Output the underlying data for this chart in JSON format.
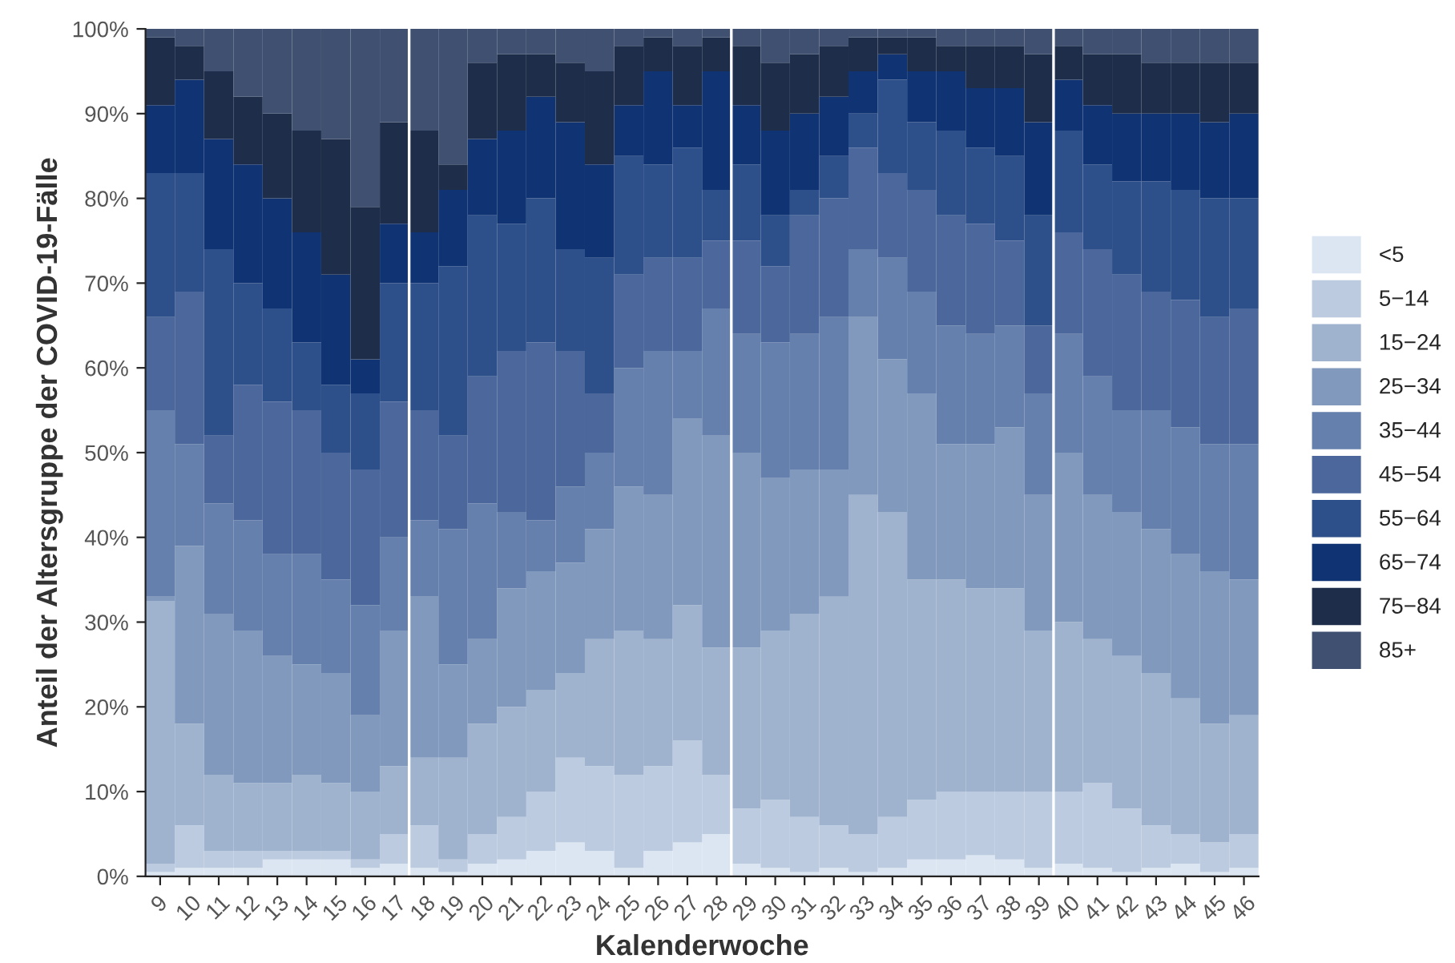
{
  "chart_data": {
    "type": "bar",
    "stacked": true,
    "xlabel": "Kalenderwoche",
    "ylabel": "Anteil der Altersgruppe der COVID-19-Fälle",
    "x": [
      9,
      10,
      11,
      12,
      13,
      14,
      15,
      16,
      17,
      18,
      19,
      20,
      21,
      22,
      23,
      24,
      25,
      26,
      27,
      28,
      29,
      30,
      31,
      32,
      33,
      34,
      35,
      36,
      37,
      38,
      39,
      40,
      41,
      42,
      43,
      44,
      45,
      46
    ],
    "xlim": [
      8.5,
      46.5
    ],
    "xticks": [
      9,
      10,
      11,
      12,
      13,
      14,
      15,
      16,
      17,
      18,
      19,
      20,
      21,
      22,
      23,
      24,
      25,
      26,
      27,
      28,
      29,
      30,
      31,
      32,
      33,
      34,
      35,
      36,
      37,
      38,
      39,
      40,
      41,
      42,
      43,
      44,
      45,
      46
    ],
    "ylim": [
      0,
      100
    ],
    "yticks": [
      {
        "value": 0,
        "label": "0%"
      },
      {
        "value": 10,
        "label": "10%"
      },
      {
        "value": 20,
        "label": "20%"
      },
      {
        "value": 30,
        "label": "30%"
      },
      {
        "value": 40,
        "label": "40%"
      },
      {
        "value": 50,
        "label": "50%"
      },
      {
        "value": 60,
        "label": "60%"
      },
      {
        "value": 70,
        "label": "70%"
      },
      {
        "value": 80,
        "label": "80%"
      },
      {
        "value": 90,
        "label": "90%"
      },
      {
        "value": 100,
        "label": "100%"
      }
    ],
    "series": [
      {
        "name": "<5",
        "color": "#dce6f2",
        "values": [
          0.5,
          1,
          1,
          1,
          2,
          2,
          2,
          1,
          1.5,
          1,
          0.5,
          1.5,
          2,
          3,
          4,
          3,
          1,
          3,
          4,
          5,
          1.5,
          1,
          0.5,
          1,
          0.5,
          1,
          2,
          2,
          2.5,
          2,
          1,
          1.5,
          1,
          0.5,
          1,
          1.5,
          0.5,
          1
        ]
      },
      {
        "name": "5−14",
        "color": "#bccbe0",
        "values": [
          1,
          5,
          2,
          2,
          1,
          1,
          1,
          1,
          3.5,
          5,
          1.5,
          3.5,
          5,
          7,
          10,
          10,
          11,
          10,
          12,
          7,
          6.5,
          8,
          6.5,
          5,
          4.5,
          6,
          7,
          8,
          7.5,
          8,
          9,
          8.5,
          10,
          7.5,
          5,
          3.5,
          3.5,
          4
        ]
      },
      {
        "name": "15−24",
        "color": "#9fb3cf",
        "values": [
          31,
          12,
          9,
          8,
          8,
          9,
          8,
          8,
          8,
          8,
          12,
          13,
          13,
          12,
          10,
          15,
          17,
          15,
          16,
          15,
          19,
          20,
          24,
          27,
          40,
          36,
          26,
          25,
          24,
          24,
          19,
          20,
          17,
          18,
          18,
          16,
          14,
          14
        ]
      },
      {
        "name": "25−34",
        "color": "#8199bd",
        "values": [
          0.5,
          21,
          19,
          18,
          15,
          13,
          13,
          9,
          16,
          19,
          11,
          10,
          14,
          14,
          13,
          13,
          17,
          17,
          22,
          25,
          23,
          18,
          17,
          15,
          21,
          18,
          22,
          16,
          17,
          19,
          16,
          20,
          17,
          17,
          17,
          17,
          18,
          16
        ]
      },
      {
        "name": "35−44",
        "color": "#6580ad",
        "values": [
          22,
          12,
          13,
          13,
          12,
          13,
          11,
          13,
          11,
          9,
          16,
          16,
          9,
          6,
          9,
          9,
          14,
          17,
          8,
          15,
          14,
          16,
          16,
          18,
          8,
          12,
          12,
          14,
          13,
          12,
          12,
          14,
          14,
          12,
          14,
          15,
          15,
          16
        ]
      },
      {
        "name": "45−54",
        "color": "#4b679b",
        "values": [
          11,
          18,
          8,
          16,
          18,
          17,
          15,
          16,
          16,
          13,
          11,
          15,
          19,
          21,
          16,
          7,
          11,
          11,
          11,
          8,
          11,
          9,
          14,
          14,
          12,
          10,
          12,
          13,
          13,
          10,
          8,
          12,
          15,
          16,
          14,
          15,
          15,
          16
        ]
      },
      {
        "name": "55−64",
        "color": "#2d4f8a",
        "values": [
          17,
          14,
          22,
          12,
          11,
          8,
          8,
          9,
          14,
          15,
          20,
          19,
          15,
          17,
          12,
          16,
          14,
          11,
          13,
          6,
          9,
          6,
          3,
          5,
          4,
          11,
          8,
          10,
          9,
          10,
          13,
          12,
          10,
          11,
          13,
          13,
          14,
          13
        ]
      },
      {
        "name": "65−74",
        "color": "#0f3373",
        "values": [
          8,
          11,
          13,
          14,
          13,
          13,
          13,
          4,
          7,
          6,
          9,
          9,
          11,
          12,
          15,
          11,
          6,
          11,
          5,
          14,
          7,
          10,
          9,
          7,
          5,
          3,
          6,
          7,
          7,
          8,
          11,
          6,
          7,
          8,
          8,
          9,
          9,
          10
        ]
      },
      {
        "name": "75−84",
        "color": "#1e2d4a",
        "values": [
          8,
          4,
          8,
          8,
          10,
          12,
          16,
          18,
          12,
          12,
          3,
          9,
          9,
          5,
          7,
          11,
          7,
          4,
          7,
          4,
          7,
          8,
          7,
          6,
          4,
          2,
          4,
          3,
          5,
          5,
          8,
          4,
          6,
          7,
          6,
          6,
          7,
          6
        ]
      },
      {
        "name": "85+",
        "color": "#3f5070",
        "values": [
          1,
          2,
          5,
          8,
          10,
          12,
          13,
          21,
          11,
          12,
          16,
          4,
          3,
          3,
          4,
          5,
          2,
          1,
          2,
          1,
          2,
          4,
          3,
          2,
          1,
          1,
          1,
          2,
          2,
          2,
          3,
          2,
          3,
          3,
          4,
          4,
          4,
          4
        ]
      }
    ],
    "ref_lines": [
      {
        "axis": "x",
        "value": 17.5,
        "color": "#ffffff"
      },
      {
        "axis": "x",
        "value": 28.5,
        "color": "#ffffff"
      },
      {
        "axis": "x",
        "value": 39.5,
        "color": "#ffffff"
      }
    ],
    "legend": "right",
    "grid": false
  }
}
